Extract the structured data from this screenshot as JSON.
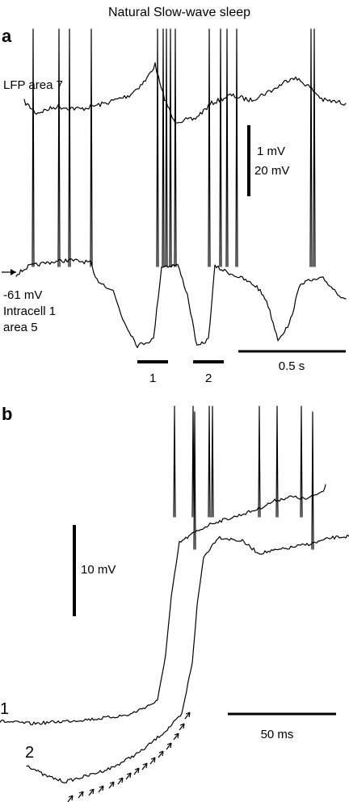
{
  "figure": {
    "title": "Natural Slow-wave sleep",
    "panel_a": {
      "label": "a",
      "lfp_label": "LFP area 7",
      "scale_mv_small": "1 mV",
      "scale_mv_large": "20 mV",
      "resting_potential": "-61 mV",
      "cell_label_1": "Intracell 1",
      "cell_label_2": "area 5",
      "segment_1": "1",
      "segment_2": "2",
      "time_scale": "0.5 s"
    },
    "panel_b": {
      "label": "b",
      "voltage_scale": "10 mV",
      "trace_1": "1",
      "trace_2": "2",
      "time_scale": "50 ms"
    }
  }
}
